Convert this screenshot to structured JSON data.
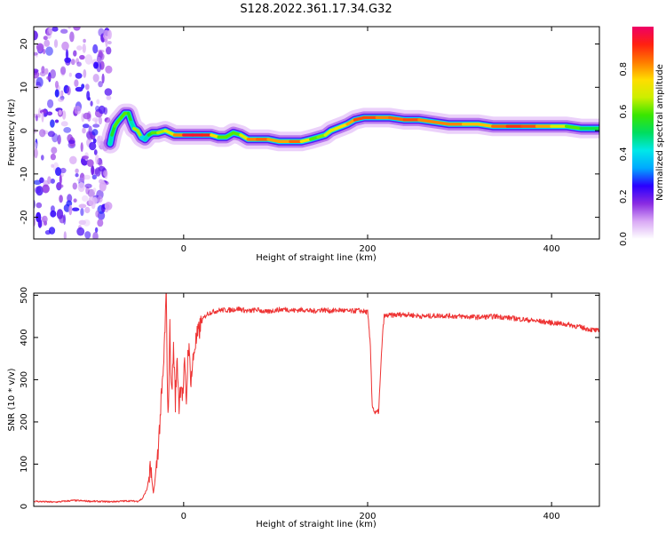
{
  "title": "S128.2022.361.17.34.G32",
  "chart_data": [
    {
      "type": "heatmap",
      "xlabel": "Height of straight line (km)",
      "ylabel": "Frequency (Hz)",
      "xlim": [
        -163,
        452
      ],
      "ylim": [
        -25,
        24
      ],
      "xticks": [
        0,
        200,
        400
      ],
      "yticks": [
        -20,
        -10,
        0,
        10,
        20
      ],
      "colorbar": {
        "label": "Normalized spectral amplitude",
        "range": [
          0,
          1
        ],
        "ticks": [
          "0.0",
          "0.2",
          "0.4",
          "0.6",
          "0.8"
        ],
        "tick_values": [
          0,
          0.2,
          0.4,
          0.6,
          0.8
        ],
        "colors": [
          "#ffffff",
          "#d9a9f5",
          "#8a2be2",
          "#2a00ff",
          "#00a8ff",
          "#00e8e8",
          "#00dd60",
          "#39e600",
          "#ccef00",
          "#ffdd00",
          "#ff7a00",
          "#ff2010",
          "#ee0066"
        ]
      },
      "noise_region": {
        "x_from": -163,
        "x_to": -80
      },
      "ridge": [
        {
          "x": -80,
          "y": -3,
          "a": 0.4
        },
        {
          "x": -78,
          "y": -1,
          "a": 0.5
        },
        {
          "x": -75,
          "y": 1,
          "a": 0.6
        },
        {
          "x": -72,
          "y": 2,
          "a": 0.6
        },
        {
          "x": -68,
          "y": 3,
          "a": 0.6
        },
        {
          "x": -64,
          "y": 4,
          "a": 0.6
        },
        {
          "x": -60,
          "y": 4,
          "a": 0.6
        },
        {
          "x": -57,
          "y": 2,
          "a": 0.5
        },
        {
          "x": -54,
          "y": 0.5,
          "a": 0.4
        },
        {
          "x": -50,
          "y": 0,
          "a": 0.9
        },
        {
          "x": -46,
          "y": -1.5,
          "a": 0.4
        },
        {
          "x": -42,
          "y": -2,
          "a": 0.4
        },
        {
          "x": -38,
          "y": -1,
          "a": 0.5
        },
        {
          "x": -34,
          "y": -0.5,
          "a": 0.6
        },
        {
          "x": -28,
          "y": -0.5,
          "a": 0.6
        },
        {
          "x": -20,
          "y": 0,
          "a": 0.7
        },
        {
          "x": -10,
          "y": -1,
          "a": 0.7
        },
        {
          "x": 0,
          "y": -1,
          "a": 0.95
        },
        {
          "x": 10,
          "y": -1,
          "a": 0.95
        },
        {
          "x": 20,
          "y": -1,
          "a": 0.95
        },
        {
          "x": 30,
          "y": -1,
          "a": 0.9
        },
        {
          "x": 38,
          "y": -1.5,
          "a": 0.6
        },
        {
          "x": 46,
          "y": -1.5,
          "a": 0.6
        },
        {
          "x": 54,
          "y": -0.5,
          "a": 0.6
        },
        {
          "x": 62,
          "y": -1,
          "a": 0.6
        },
        {
          "x": 70,
          "y": -2,
          "a": 0.8
        },
        {
          "x": 80,
          "y": -2,
          "a": 0.85
        },
        {
          "x": 92,
          "y": -2,
          "a": 0.85
        },
        {
          "x": 104,
          "y": -2.5,
          "a": 0.75
        },
        {
          "x": 116,
          "y": -2.5,
          "a": 0.85
        },
        {
          "x": 128,
          "y": -2.5,
          "a": 0.85
        },
        {
          "x": 138,
          "y": -2,
          "a": 0.6
        },
        {
          "x": 146,
          "y": -1.5,
          "a": 0.6
        },
        {
          "x": 154,
          "y": -1,
          "a": 0.65
        },
        {
          "x": 160,
          "y": 0,
          "a": 0.7
        },
        {
          "x": 166,
          "y": 0.5,
          "a": 0.7
        },
        {
          "x": 172,
          "y": 1,
          "a": 0.75
        },
        {
          "x": 178,
          "y": 1.5,
          "a": 0.75
        },
        {
          "x": 186,
          "y": 2.5,
          "a": 0.85
        },
        {
          "x": 196,
          "y": 3,
          "a": 0.9
        },
        {
          "x": 210,
          "y": 3,
          "a": 0.85
        },
        {
          "x": 224,
          "y": 3,
          "a": 0.8
        },
        {
          "x": 240,
          "y": 2.5,
          "a": 0.9
        },
        {
          "x": 256,
          "y": 2.5,
          "a": 0.85
        },
        {
          "x": 272,
          "y": 2,
          "a": 0.8
        },
        {
          "x": 288,
          "y": 1.5,
          "a": 0.85
        },
        {
          "x": 304,
          "y": 1.5,
          "a": 0.8
        },
        {
          "x": 320,
          "y": 1.5,
          "a": 0.75
        },
        {
          "x": 336,
          "y": 1,
          "a": 0.8
        },
        {
          "x": 352,
          "y": 1,
          "a": 0.9
        },
        {
          "x": 368,
          "y": 1,
          "a": 0.9
        },
        {
          "x": 384,
          "y": 1,
          "a": 0.85
        },
        {
          "x": 400,
          "y": 1,
          "a": 0.75
        },
        {
          "x": 416,
          "y": 1,
          "a": 0.65
        },
        {
          "x": 432,
          "y": 0.5,
          "a": 0.55
        },
        {
          "x": 452,
          "y": 0.5,
          "a": 0.5
        }
      ]
    },
    {
      "type": "line",
      "xlabel": "Height of straight line (km)",
      "ylabel": "SNR (10 * v/v)",
      "xlim": [
        -163,
        452
      ],
      "ylim": [
        0,
        505
      ],
      "xticks": [
        0,
        200,
        400
      ],
      "yticks": [
        0,
        100,
        200,
        300,
        400,
        500
      ],
      "color": "#ee3333",
      "x": [
        -163,
        -140,
        -120,
        -100,
        -80,
        -60,
        -50,
        -45,
        -40,
        -36,
        -33,
        -30,
        -27,
        -25,
        -22,
        -19,
        -17,
        -15,
        -13,
        -11,
        -9,
        -7,
        -5,
        -3,
        -1,
        1,
        3,
        5,
        8,
        12,
        16,
        20,
        25,
        30,
        40,
        50,
        60,
        70,
        80,
        90,
        100,
        110,
        120,
        130,
        140,
        150,
        160,
        170,
        180,
        190,
        200,
        203,
        205,
        208,
        212,
        216,
        218,
        222,
        240,
        260,
        280,
        300,
        320,
        340,
        360,
        380,
        400,
        420,
        440,
        452
      ],
      "y": [
        12,
        10,
        14,
        12,
        11,
        13,
        12,
        18,
        40,
        90,
        30,
        80,
        160,
        230,
        320,
        500,
        200,
        420,
        260,
        380,
        250,
        350,
        240,
        300,
        260,
        330,
        250,
        390,
        300,
        380,
        410,
        440,
        455,
        460,
        465,
        465,
        468,
        462,
        466,
        460,
        465,
        467,
        464,
        466,
        462,
        466,
        463,
        465,
        462,
        464,
        460,
        380,
        240,
        220,
        225,
        400,
        450,
        452,
        455,
        450,
        452,
        450,
        448,
        450,
        445,
        440,
        435,
        430,
        420,
        415
      ]
    }
  ]
}
